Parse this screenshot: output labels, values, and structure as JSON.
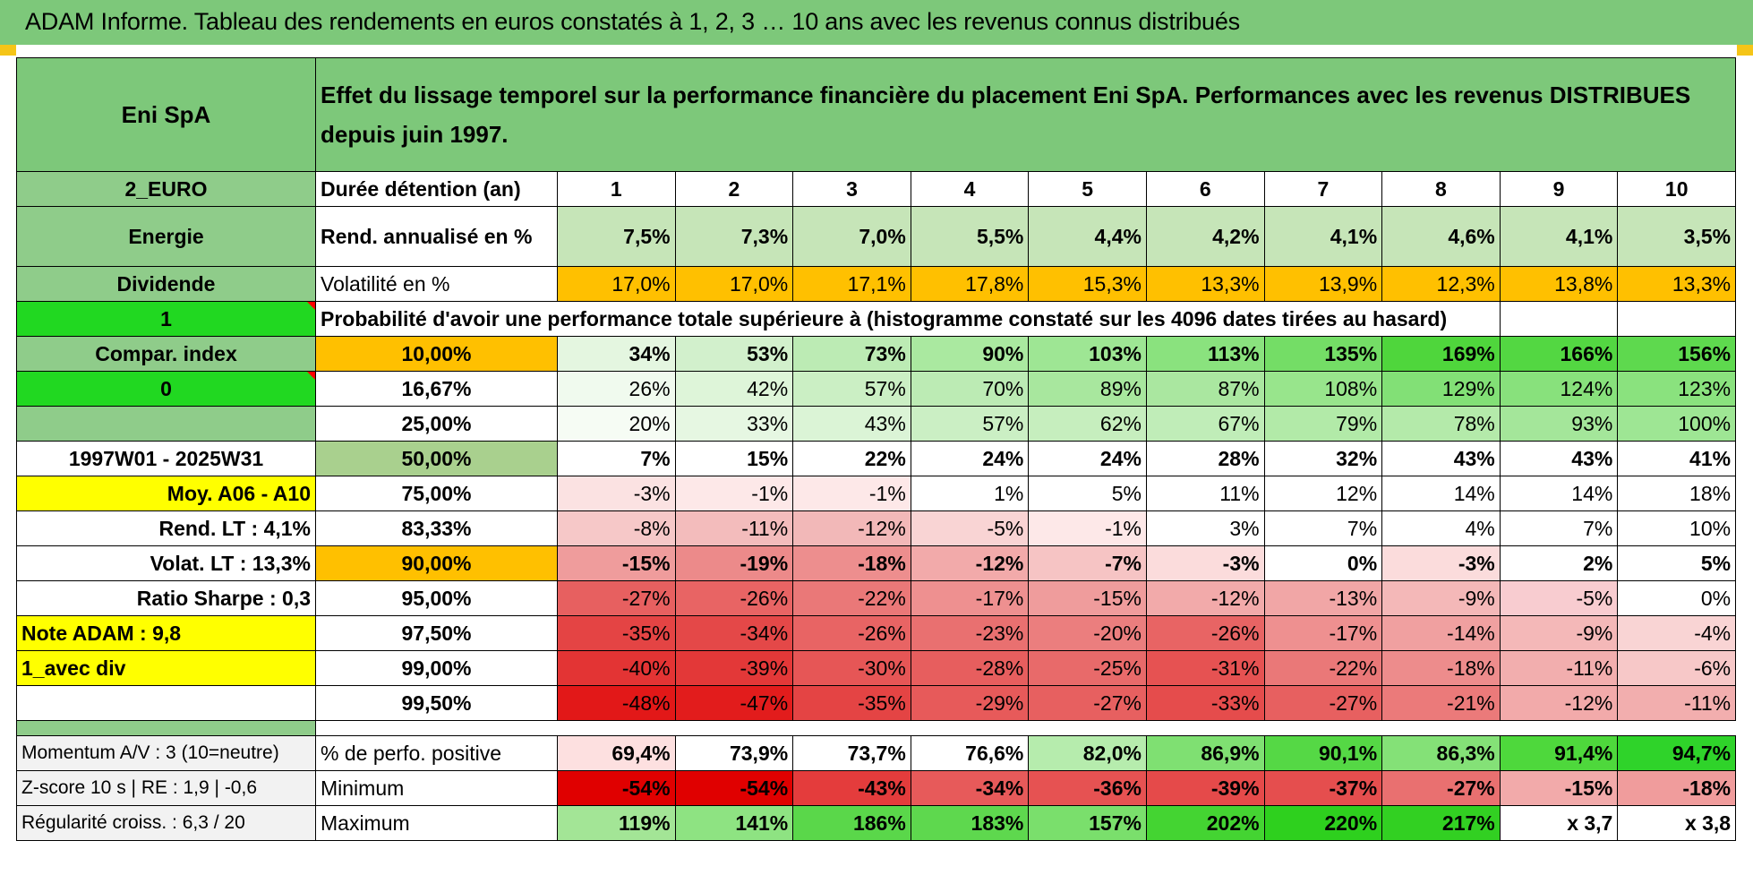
{
  "title": "ADAM Informe. Tableau des rendements en euros constatés à 1, 2, 3 … 10 ans avec les revenus connus distribués",
  "left": {
    "name": "Eni SpA",
    "currency": "2_EURO",
    "sector": "Energie",
    "type": "Dividende",
    "flag1": "1",
    "compar": "Compar. index",
    "flag0": "0",
    "period": "1997W01 - 2025W31",
    "moy": "Moy. A06 - A10",
    "rend_lt": "Rend. LT :    4,1%",
    "volat_lt": "Volat. LT :    13,3%",
    "sharpe": "Ratio Sharpe :     0,3",
    "note": "Note ADAM : 9,8",
    "mode": "1_avec div",
    "momentum": "Momentum A/V : 3 (10=neutre)",
    "zscore": "Z-score 10 s | RE : 1,9 | -0,6",
    "regularite": "Régularité croiss. : 6,3 / 20"
  },
  "header_text": "Effet du lissage temporel sur la performance financière du placement Eni SpA. Performances avec les revenus DISTRIBUES depuis juin 1997.",
  "duration_label": "Durée détention (an)",
  "years": [
    "1",
    "2",
    "3",
    "4",
    "5",
    "6",
    "7",
    "8",
    "9",
    "10"
  ],
  "rend_label": "Rend. annualisé en %",
  "rend": [
    "7,5%",
    "7,3%",
    "7,0%",
    "5,5%",
    "4,4%",
    "4,2%",
    "4,1%",
    "4,6%",
    "4,1%",
    "3,5%"
  ],
  "vol_label": "Volatilité en %",
  "vol": [
    "17,0%",
    "17,0%",
    "17,1%",
    "17,8%",
    "15,3%",
    "13,3%",
    "13,9%",
    "12,3%",
    "13,8%",
    "13,3%"
  ],
  "prob_title": "Probabilité d'avoir une performance totale supérieure à (histogramme constaté sur les 4096 dates tirées au hasard)",
  "quantiles": [
    {
      "p": "10,00%",
      "v": [
        "34%",
        "53%",
        "73%",
        "90%",
        "103%",
        "113%",
        "135%",
        "169%",
        "166%",
        "156%"
      ],
      "bg": [
        "#e4f6e0",
        "#d2f0cc",
        "#bcebb4",
        "#aae9a0",
        "#9ee694",
        "#8ae27e",
        "#74dd66",
        "#4fd63c",
        "#53d742",
        "#5ed94e"
      ]
    },
    {
      "p": "16,67%",
      "v": [
        "26%",
        "42%",
        "57%",
        "70%",
        "89%",
        "87%",
        "108%",
        "129%",
        "124%",
        "123%"
      ],
      "bg": [
        "#f0faee",
        "#def5d9",
        "#cbefc4",
        "#bcebb4",
        "#a8e79e",
        "#aae7a0",
        "#98e58c",
        "#82e076",
        "#88e17c",
        "#8ae27e"
      ]
    },
    {
      "p": "25,00%",
      "v": [
        "20%",
        "33%",
        "43%",
        "57%",
        "62%",
        "67%",
        "79%",
        "78%",
        "93%",
        "100%"
      ],
      "bg": [
        "#f6fcf4",
        "#e6f7e2",
        "#dbf4d6",
        "#cbefc4",
        "#c6eebe",
        "#c0edb8",
        "#b2eaa8",
        "#b4eaaa",
        "#a4e69a",
        "#9ee694"
      ]
    },
    {
      "p": "50,00%",
      "v": [
        "7%",
        "15%",
        "22%",
        "24%",
        "24%",
        "28%",
        "32%",
        "43%",
        "43%",
        "41%"
      ],
      "bg": [
        "#ffffff",
        "#ffffff",
        "#ffffff",
        "#ffffff",
        "#ffffff",
        "#ffffff",
        "#ffffff",
        "#ffffff",
        "#ffffff",
        "#ffffff"
      ]
    },
    {
      "p": "75,00%",
      "v": [
        "-3%",
        "-1%",
        "-1%",
        "1%",
        "5%",
        "11%",
        "12%",
        "14%",
        "14%",
        "18%"
      ],
      "bg": [
        "#fbe2e2",
        "#fde8e8",
        "#fde8e8",
        "#ffffff",
        "#ffffff",
        "#ffffff",
        "#ffffff",
        "#ffffff",
        "#ffffff",
        "#ffffff"
      ]
    },
    {
      "p": "83,33%",
      "v": [
        "-8%",
        "-11%",
        "-12%",
        "-5%",
        "-1%",
        "3%",
        "7%",
        "4%",
        "7%",
        "10%"
      ],
      "bg": [
        "#f6c8c8",
        "#f3bcbc",
        "#f2b8b8",
        "#f9d4d4",
        "#fde8e8",
        "#ffffff",
        "#ffffff",
        "#ffffff",
        "#ffffff",
        "#ffffff"
      ]
    },
    {
      "p": "90,00%",
      "v": [
        "-15%",
        "-19%",
        "-18%",
        "-12%",
        "-7%",
        "-3%",
        "0%",
        "-3%",
        "2%",
        "5%"
      ],
      "bg": [
        "#ef9c9c",
        "#ec8a8a",
        "#ed8e8e",
        "#f2aaaa",
        "#f6c4c4",
        "#fbdcdc",
        "#ffffff",
        "#fbdcdc",
        "#ffffff",
        "#ffffff"
      ]
    },
    {
      "p": "95,00%",
      "v": [
        "-27%",
        "-26%",
        "-22%",
        "-17%",
        "-15%",
        "-12%",
        "-13%",
        "-9%",
        "-5%",
        "0%"
      ],
      "bg": [
        "#e76060",
        "#e86464",
        "#ea7878",
        "#ee9090",
        "#ef9c9c",
        "#f2aaaa",
        "#f1a6a6",
        "#f4b8b8",
        "#f8ccd0",
        "#ffffff"
      ]
    },
    {
      "p": "97,50%",
      "v": [
        "-35%",
        "-34%",
        "-26%",
        "-23%",
        "-20%",
        "-26%",
        "-17%",
        "-14%",
        "-9%",
        "-4%"
      ],
      "bg": [
        "#e44444",
        "#e44848",
        "#e86464",
        "#e97070",
        "#eb7e7e",
        "#e86464",
        "#ee9090",
        "#f0a0a0",
        "#f4b8b8",
        "#f9d4d4"
      ]
    },
    {
      "p": "99,00%",
      "v": [
        "-40%",
        "-39%",
        "-30%",
        "-28%",
        "-25%",
        "-31%",
        "-22%",
        "-18%",
        "-11%",
        "-6%"
      ],
      "bg": [
        "#e33434",
        "#e33838",
        "#e65656",
        "#e75e5e",
        "#e86a6a",
        "#e65252",
        "#ea7878",
        "#ed8c8c",
        "#f2aeae",
        "#f7c8c8"
      ]
    },
    {
      "p": "99,50%",
      "v": [
        "-48%",
        "-47%",
        "-35%",
        "-29%",
        "-27%",
        "-33%",
        "-27%",
        "-21%",
        "-12%",
        "-11%"
      ],
      "bg": [
        "#e21818",
        "#e21c1c",
        "#e44444",
        "#e75a5a",
        "#e76060",
        "#e54c4c",
        "#e76060",
        "#eb7a7a",
        "#f2aaaa",
        "#f2aeae"
      ]
    }
  ],
  "pos_label": "% de perfo. positive",
  "pos": [
    "69,4%",
    "73,9%",
    "73,7%",
    "76,6%",
    "82,0%",
    "86,9%",
    "90,1%",
    "86,3%",
    "91,4%",
    "94,7%"
  ],
  "pos_bg": [
    "#fde0e0",
    "#ffffff",
    "#ffffff",
    "#ffffff",
    "#b6ecad",
    "#7fe072",
    "#55d845",
    "#84e177",
    "#4ed83c",
    "#2fd32a"
  ],
  "min_label": "Minimum",
  "min": [
    "-54%",
    "-54%",
    "-43%",
    "-34%",
    "-36%",
    "-39%",
    "-37%",
    "-27%",
    "-15%",
    "-18%"
  ],
  "min_bg": [
    "#e00000",
    "#e00000",
    "#e43c3c",
    "#e75a5a",
    "#e65252",
    "#e54a4a",
    "#e54e4e",
    "#e97070",
    "#f2aaaa",
    "#f09c9c"
  ],
  "max_label": "Maximum",
  "max": [
    "119%",
    "141%",
    "186%",
    "183%",
    "157%",
    "202%",
    "220%",
    "217%",
    "x 3,7",
    "x 3,8"
  ],
  "max_bg": [
    "#a3e596",
    "#8ee382",
    "#5ad74a",
    "#5ed84e",
    "#7adf6c",
    "#44d432",
    "#2ed01e",
    "#32d022",
    "#ffffff",
    "#ffffff"
  ],
  "colors": {
    "header_green": "#7dc87a",
    "bright_green": "#21d821",
    "yellow": "#ffff00",
    "orange": "#ffc000",
    "red_text": "#e41b1b"
  }
}
